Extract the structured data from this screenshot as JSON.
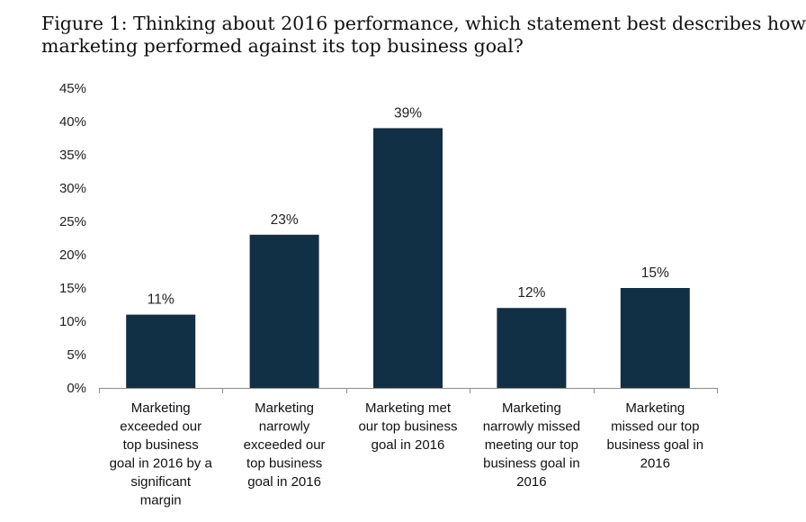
{
  "title_lines": [
    "Figure 1: Thinking about 2016 performance, which statement best describes how",
    "marketing performed against its top business goal?"
  ],
  "chart_data": {
    "type": "bar",
    "title": "Figure 1: Thinking about 2016 performance, which statement best describes how marketing performed against its top business goal?",
    "categories": [
      [
        "Marketing",
        "exceeded our",
        "top business",
        "goal in 2016 by a",
        "significant",
        "margin"
      ],
      [
        "Marketing",
        "narrowly",
        "exceeded our",
        "top business",
        "goal in 2016"
      ],
      [
        "Marketing met",
        "our top business",
        "goal in 2016"
      ],
      [
        "Marketing",
        "narrowly missed",
        "meeting our top",
        "business goal in",
        "2016"
      ],
      [
        "Marketing",
        "missed our top",
        "business goal in",
        "2016"
      ]
    ],
    "values": [
      11,
      23,
      39,
      12,
      15
    ],
    "data_labels": [
      "11%",
      "23%",
      "39%",
      "12%",
      "15%"
    ],
    "ylim": [
      0,
      45
    ],
    "yticks": [
      0,
      5,
      10,
      15,
      20,
      25,
      30,
      35,
      40,
      45
    ],
    "ytick_labels": [
      "0%",
      "5%",
      "10%",
      "15%",
      "20%",
      "25%",
      "30%",
      "35%",
      "40%",
      "45%"
    ],
    "xlabel": "",
    "ylabel": "",
    "grid": false,
    "bar_color": "#112f45"
  }
}
